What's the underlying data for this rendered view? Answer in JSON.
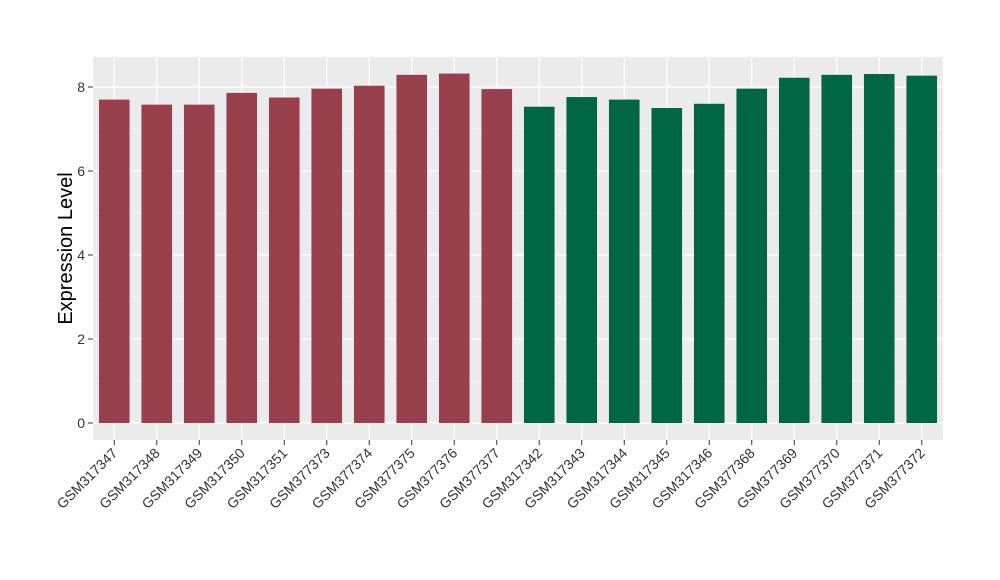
{
  "chart_data": {
    "type": "bar",
    "title": "",
    "xlabel": "",
    "ylabel": "Expression Level",
    "ylim": [
      0,
      8.75
    ],
    "yticks": [
      0,
      2,
      4,
      6,
      8
    ],
    "grid": true,
    "legend": "none",
    "categories": [
      "GSM317347",
      "GSM317348",
      "GSM317349",
      "GSM317350",
      "GSM317351",
      "GSM377373",
      "GSM377374",
      "GSM377375",
      "GSM377376",
      "GSM377377",
      "GSM317342",
      "GSM317343",
      "GSM317344",
      "GSM317345",
      "GSM317346",
      "GSM377368",
      "GSM377369",
      "GSM377370",
      "GSM377371",
      "GSM377372"
    ],
    "values": [
      7.7,
      7.58,
      7.58,
      7.86,
      7.75,
      7.96,
      8.03,
      8.29,
      8.32,
      7.95,
      7.53,
      7.76,
      7.7,
      7.5,
      7.6,
      7.96,
      8.22,
      8.29,
      8.31,
      8.27
    ],
    "groups": [
      0,
      0,
      0,
      0,
      0,
      0,
      0,
      0,
      0,
      0,
      1,
      1,
      1,
      1,
      1,
      1,
      1,
      1,
      1,
      1
    ],
    "colors": [
      "#99404d",
      "#006644"
    ],
    "panel_background": "#ebebeb",
    "grid_color": "#ffffff"
  }
}
